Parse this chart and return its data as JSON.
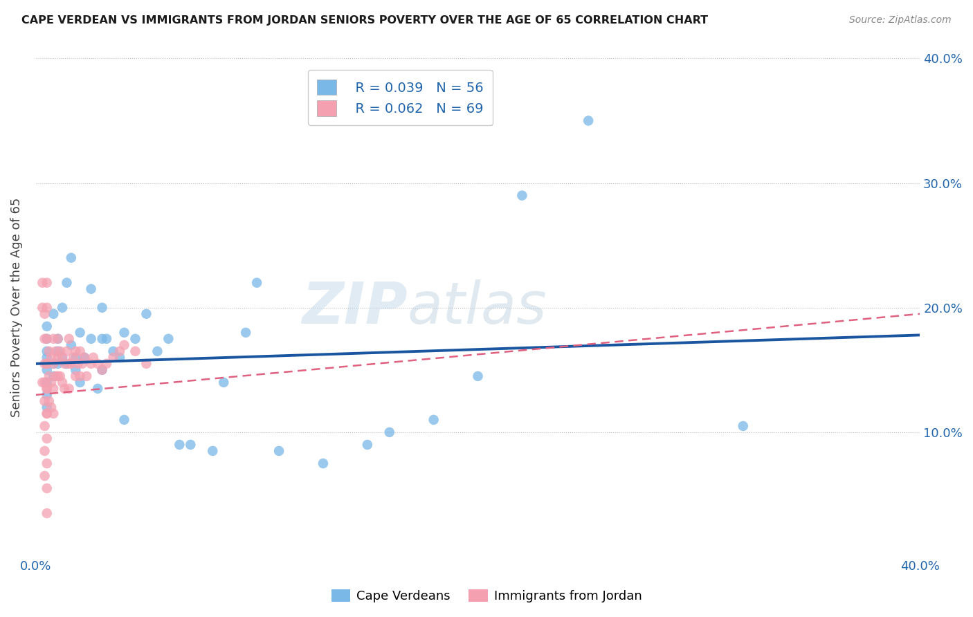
{
  "title": "CAPE VERDEAN VS IMMIGRANTS FROM JORDAN SENIORS POVERTY OVER THE AGE OF 65 CORRELATION CHART",
  "source": "Source: ZipAtlas.com",
  "ylabel": "Seniors Poverty Over the Age of 65",
  "xlim": [
    0.0,
    0.4
  ],
  "ylim": [
    0.0,
    0.4
  ],
  "color_cv": "#7ab8e8",
  "color_jd": "#f4a0b0",
  "color_cv_line": "#1a56a0",
  "color_jd_line": "#e06080",
  "R_cv": 0.039,
  "N_cv": 56,
  "R_jd": 0.062,
  "N_jd": 69,
  "watermark": "ZIPatlas",
  "cv_line_x0": 0.0,
  "cv_line_y0": 0.155,
  "cv_line_x1": 0.4,
  "cv_line_y1": 0.178,
  "jd_line_x0": 0.0,
  "jd_line_y0": 0.13,
  "jd_line_x1": 0.4,
  "jd_line_y1": 0.195,
  "cv_x": [
    0.005,
    0.005,
    0.005,
    0.005,
    0.005,
    0.005,
    0.005,
    0.005,
    0.005,
    0.008,
    0.008,
    0.008,
    0.01,
    0.01,
    0.01,
    0.012,
    0.012,
    0.014,
    0.014,
    0.016,
    0.016,
    0.018,
    0.018,
    0.02,
    0.02,
    0.022,
    0.025,
    0.025,
    0.028,
    0.03,
    0.03,
    0.03,
    0.032,
    0.035,
    0.038,
    0.04,
    0.04,
    0.045,
    0.05,
    0.055,
    0.06,
    0.065,
    0.07,
    0.08,
    0.085,
    0.095,
    0.1,
    0.11,
    0.13,
    0.15,
    0.16,
    0.18,
    0.2,
    0.22,
    0.25,
    0.32
  ],
  "cv_y": [
    0.16,
    0.15,
    0.14,
    0.13,
    0.12,
    0.155,
    0.165,
    0.175,
    0.185,
    0.195,
    0.145,
    0.155,
    0.165,
    0.155,
    0.175,
    0.16,
    0.2,
    0.155,
    0.22,
    0.24,
    0.17,
    0.16,
    0.15,
    0.18,
    0.14,
    0.16,
    0.175,
    0.215,
    0.135,
    0.2,
    0.175,
    0.15,
    0.175,
    0.165,
    0.16,
    0.18,
    0.11,
    0.175,
    0.195,
    0.165,
    0.175,
    0.09,
    0.09,
    0.085,
    0.14,
    0.18,
    0.22,
    0.085,
    0.075,
    0.09,
    0.1,
    0.11,
    0.145,
    0.29,
    0.35,
    0.105
  ],
  "jd_x": [
    0.003,
    0.003,
    0.003,
    0.004,
    0.004,
    0.004,
    0.004,
    0.004,
    0.004,
    0.004,
    0.004,
    0.005,
    0.005,
    0.005,
    0.005,
    0.005,
    0.005,
    0.005,
    0.005,
    0.005,
    0.005,
    0.005,
    0.005,
    0.005,
    0.006,
    0.006,
    0.006,
    0.007,
    0.007,
    0.007,
    0.008,
    0.008,
    0.008,
    0.008,
    0.009,
    0.009,
    0.01,
    0.01,
    0.01,
    0.011,
    0.011,
    0.012,
    0.012,
    0.013,
    0.013,
    0.014,
    0.015,
    0.015,
    0.015,
    0.016,
    0.017,
    0.018,
    0.018,
    0.019,
    0.02,
    0.02,
    0.021,
    0.022,
    0.023,
    0.025,
    0.026,
    0.028,
    0.03,
    0.032,
    0.035,
    0.038,
    0.04,
    0.045,
    0.05
  ],
  "jd_y": [
    0.22,
    0.2,
    0.14,
    0.195,
    0.175,
    0.155,
    0.14,
    0.125,
    0.105,
    0.085,
    0.065,
    0.22,
    0.2,
    0.175,
    0.155,
    0.135,
    0.115,
    0.095,
    0.075,
    0.055,
    0.035,
    0.155,
    0.135,
    0.115,
    0.165,
    0.145,
    0.125,
    0.16,
    0.14,
    0.12,
    0.175,
    0.155,
    0.135,
    0.115,
    0.165,
    0.145,
    0.175,
    0.16,
    0.145,
    0.165,
    0.145,
    0.16,
    0.14,
    0.155,
    0.135,
    0.165,
    0.175,
    0.155,
    0.135,
    0.155,
    0.16,
    0.165,
    0.145,
    0.155,
    0.145,
    0.165,
    0.155,
    0.16,
    0.145,
    0.155,
    0.16,
    0.155,
    0.15,
    0.155,
    0.16,
    0.165,
    0.17,
    0.165,
    0.155
  ]
}
